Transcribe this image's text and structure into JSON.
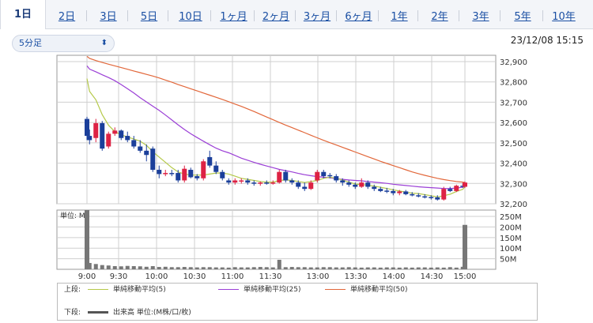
{
  "tabs": [
    {
      "label": "1日",
      "active": true
    },
    {
      "label": "2日"
    },
    {
      "label": "3日"
    },
    {
      "label": "5日"
    },
    {
      "label": "10日"
    },
    {
      "label": "1ヶ月"
    },
    {
      "label": "2ヶ月"
    },
    {
      "label": "3ヶ月"
    },
    {
      "label": "6ヶ月"
    },
    {
      "label": "1年"
    },
    {
      "label": "2年"
    },
    {
      "label": "3年"
    },
    {
      "label": "5年"
    },
    {
      "label": "10年"
    }
  ],
  "interval_select": {
    "value": "5分足",
    "icon": "chevron-updown-icon"
  },
  "timestamp": "23/12/08 15:15",
  "colors": {
    "up": "#dd2244",
    "down": "#1b3f9a",
    "sma5": "#b5c94a",
    "sma25": "#9b3fd6",
    "sma50": "#e2673a",
    "volume": "#777777"
  },
  "chart_data": [
    {
      "type": "candlestick",
      "x": [
        "9:00",
        "9:05",
        "9:10",
        "9:15",
        "9:20",
        "9:25",
        "9:30",
        "9:35",
        "9:40",
        "9:45",
        "9:50",
        "9:55",
        "10:00",
        "10:05",
        "10:10",
        "10:15",
        "10:20",
        "10:25",
        "10:30",
        "10:35",
        "10:40",
        "10:45",
        "10:50",
        "10:55",
        "11:00",
        "11:05",
        "11:10",
        "11:15",
        "11:20",
        "11:25",
        "11:30",
        "12:30",
        "12:35",
        "12:40",
        "12:45",
        "12:50",
        "12:55",
        "13:00",
        "13:05",
        "13:10",
        "13:15",
        "13:20",
        "13:25",
        "13:30",
        "13:35",
        "13:40",
        "13:45",
        "13:50",
        "13:55",
        "14:00",
        "14:05",
        "14:10",
        "14:15",
        "14:20",
        "14:25",
        "14:30",
        "14:35",
        "14:40",
        "14:45",
        "14:50",
        "14:55",
        "15:00"
      ],
      "xticks": [
        "9:00",
        "9:30",
        "10:00",
        "10:30",
        "11:00",
        "11:30",
        "13:00",
        "13:30",
        "14:00",
        "14:30",
        "15:00"
      ],
      "ylim": [
        32200,
        32900
      ],
      "yticks": [
        "32,900",
        "32,800",
        "32,700",
        "32,600",
        "32,500",
        "32,400",
        "32,300",
        "32,200"
      ],
      "ohlc": [
        [
          32600,
          32610,
          32500,
          32520
        ],
        [
          32520,
          32550,
          32480,
          32500
        ],
        [
          32510,
          32600,
          32490,
          32580
        ],
        [
          32580,
          32590,
          32450,
          32460
        ],
        [
          32470,
          32540,
          32460,
          32530
        ],
        [
          32530,
          32560,
          32520,
          32545
        ],
        [
          32545,
          32550,
          32500,
          32510
        ],
        [
          32520,
          32540,
          32490,
          32500
        ],
        [
          32500,
          32520,
          32460,
          32470
        ],
        [
          32470,
          32500,
          32440,
          32450
        ],
        [
          32450,
          32480,
          32400,
          32430
        ],
        [
          32460,
          32470,
          32350,
          32360
        ],
        [
          32360,
          32380,
          32320,
          32340
        ],
        [
          32340,
          32360,
          32330,
          32345
        ],
        [
          32345,
          32360,
          32330,
          32340
        ],
        [
          32345,
          32360,
          32300,
          32310
        ],
        [
          32310,
          32380,
          32300,
          32365
        ],
        [
          32360,
          32370,
          32320,
          32325
        ],
        [
          32330,
          32340,
          32310,
          32320
        ],
        [
          32320,
          32410,
          32310,
          32400
        ],
        [
          32420,
          32450,
          32370,
          32380
        ],
        [
          32380,
          32400,
          32340,
          32350
        ],
        [
          32350,
          32360,
          32310,
          32320
        ],
        [
          32310,
          32320,
          32290,
          32300
        ],
        [
          32300,
          32320,
          32290,
          32310
        ],
        [
          32305,
          32320,
          32295,
          32310
        ],
        [
          32310,
          32320,
          32290,
          32300
        ],
        [
          32300,
          32310,
          32285,
          32295
        ],
        [
          32295,
          32305,
          32285,
          32300
        ],
        [
          32300,
          32310,
          32290,
          32295
        ],
        [
          32298,
          32310,
          32290,
          32300
        ],
        [
          32300,
          32360,
          32295,
          32350
        ],
        [
          32350,
          32360,
          32300,
          32310
        ],
        [
          32310,
          32320,
          32290,
          32300
        ],
        [
          32300,
          32310,
          32270,
          32280
        ],
        [
          32280,
          32300,
          32260,
          32270
        ],
        [
          32270,
          32310,
          32265,
          32300
        ],
        [
          32310,
          32360,
          32300,
          32350
        ],
        [
          32350,
          32360,
          32320,
          32330
        ],
        [
          32335,
          32345,
          32320,
          32330
        ],
        [
          32330,
          32340,
          32300,
          32310
        ],
        [
          32310,
          32320,
          32285,
          32300
        ],
        [
          32300,
          32310,
          32280,
          32290
        ],
        [
          32290,
          32300,
          32270,
          32280
        ],
        [
          32280,
          32320,
          32275,
          32300
        ],
        [
          32300,
          32310,
          32270,
          32280
        ],
        [
          32280,
          32290,
          32260,
          32270
        ],
        [
          32270,
          32280,
          32255,
          32260
        ],
        [
          32262,
          32275,
          32250,
          32260
        ],
        [
          32260,
          32270,
          32240,
          32250
        ],
        [
          32250,
          32265,
          32240,
          32258
        ],
        [
          32258,
          32265,
          32240,
          32245
        ],
        [
          32245,
          32255,
          32235,
          32240
        ],
        [
          32240,
          32250,
          32230,
          32235
        ],
        [
          32235,
          32245,
          32225,
          32230
        ],
        [
          32232,
          32240,
          32220,
          32228
        ],
        [
          32230,
          32240,
          32215,
          32220
        ],
        [
          32220,
          32280,
          32215,
          32270
        ],
        [
          32270,
          32280,
          32255,
          32260
        ],
        [
          32260,
          32290,
          32255,
          32285
        ],
        [
          32285,
          32295,
          32275,
          32280
        ],
        [
          32280,
          32305,
          32275,
          32300
        ]
      ],
      "sma5": [
        32790,
        32730,
        32690,
        32620,
        32570,
        32540,
        32525,
        32515,
        32505,
        32495,
        32475,
        32445,
        32420,
        32395,
        32370,
        32350,
        32340,
        32335,
        32335,
        32335,
        32340,
        32345,
        32345,
        32340,
        32330,
        32320,
        32315,
        32310,
        32305,
        32302,
        32302,
        32310,
        32312,
        32310,
        32305,
        32300,
        32305,
        32310,
        32320,
        32325,
        32320,
        32312,
        32302,
        32293,
        32290,
        32288,
        32283,
        32278,
        32272,
        32266,
        32260,
        32255,
        32250,
        32248,
        32243,
        32238,
        32232,
        32238,
        32245,
        32258,
        32268,
        32280
      ],
      "sma25": [
        32850,
        32835,
        32822,
        32808,
        32795,
        32780,
        32762,
        32742,
        32722,
        32700,
        32680,
        32660,
        32640,
        32618,
        32595,
        32572,
        32550,
        32530,
        32512,
        32495,
        32478,
        32462,
        32450,
        32440,
        32428,
        32415,
        32405,
        32395,
        32386,
        32378,
        32370,
        32362,
        32356,
        32350,
        32343,
        32337,
        32332,
        32328,
        32325,
        32322,
        32318,
        32315,
        32312,
        32310,
        32308,
        32305,
        32302,
        32299,
        32296,
        32292,
        32289,
        32286,
        32283,
        32280,
        32278,
        32276,
        32274,
        32272,
        32272,
        32274,
        32278,
        32282
      ],
      "sma50": [
        32895,
        32885,
        32875,
        32866,
        32858,
        32850,
        32842,
        32834,
        32826,
        32818,
        32810,
        32802,
        32793,
        32783,
        32773,
        32762,
        32752,
        32742,
        32732,
        32722,
        32712,
        32702,
        32692,
        32681,
        32670,
        32659,
        32647,
        32635,
        32622,
        32609,
        32596,
        32583,
        32571,
        32559,
        32547,
        32535,
        32523,
        32511,
        32499,
        32488,
        32477,
        32466,
        32455,
        32444,
        32433,
        32422,
        32411,
        32400,
        32390,
        32380,
        32370,
        32360,
        32350,
        32342,
        32334,
        32327,
        32320,
        32314,
        32309,
        32305,
        32302,
        32300
      ]
    },
    {
      "type": "bar",
      "label": "単位: M",
      "yticks": [
        "250M",
        "200M",
        "150M",
        "100M",
        "50M"
      ],
      "ylim": [
        0,
        280
      ],
      "values": [
        280,
        30,
        25,
        20,
        18,
        15,
        14,
        16,
        15,
        14,
        12,
        15,
        11,
        12,
        10,
        10,
        11,
        10,
        9,
        10,
        10,
        9,
        9,
        8,
        10,
        9,
        9,
        10,
        11,
        10,
        9,
        45,
        10,
        11,
        10,
        10,
        9,
        9,
        10,
        10,
        9,
        9,
        10,
        9,
        8,
        9,
        9,
        8,
        9,
        9,
        8,
        9,
        8,
        9,
        9,
        8,
        9,
        8,
        10,
        8,
        12,
        210
      ]
    }
  ],
  "legend": {
    "upper_label": "上段:",
    "lower_label": "下段:",
    "series": [
      {
        "name": "単純移動平均(5)"
      },
      {
        "name": "単純移動平均(25)"
      },
      {
        "name": "単純移動平均(50)"
      }
    ],
    "volume_name": "出来高 単位:(M株/口/枚)"
  }
}
